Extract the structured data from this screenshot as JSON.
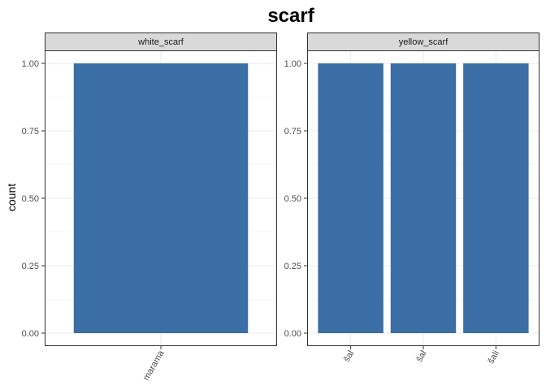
{
  "chart_data": {
    "type": "bar",
    "title": "scarf",
    "ylabel": "count",
    "xlabel": "",
    "ylim": [
      0,
      1
    ],
    "yticks": [
      "0.00",
      "0.25",
      "0.50",
      "0.75",
      "1.00"
    ],
    "grid": true,
    "bar_color": "#3A6EA5",
    "facets": [
      {
        "name": "white_scarf",
        "categories": [
          "marama"
        ],
        "values": [
          1
        ]
      },
      {
        "name": "yellow_scarf",
        "categories": [
          "šal",
          "šal",
          "šali"
        ],
        "values": [
          1,
          1,
          1
        ]
      }
    ]
  }
}
